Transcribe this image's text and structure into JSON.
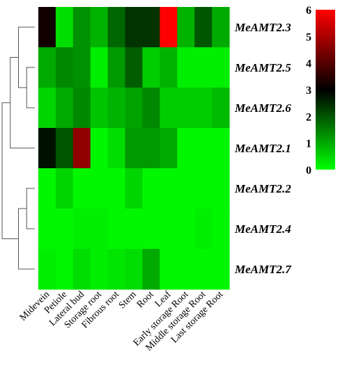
{
  "chart_data": {
    "type": "heatmap",
    "rows": [
      "MeAMT2.3",
      "MeAMT2.5",
      "MeAMT2.6",
      "MeAMT2.1",
      "MeAMT2.2",
      "MeAMT2.4",
      "MeAMT2.7"
    ],
    "columns": [
      "Midevein",
      "Petiole",
      "Lateral bud",
      "Storage root",
      "Fibrous root",
      "Stem",
      "Root",
      "Leaf",
      "Early storage Root",
      "Middle storage Root",
      "Last storage Root"
    ],
    "values": [
      [
        3.2,
        0.4,
        1.3,
        0.9,
        1.8,
        2.4,
        2.4,
        6.0,
        0.9,
        2.0,
        1.0
      ],
      [
        1.0,
        1.4,
        1.3,
        0.2,
        1.2,
        1.9,
        0.6,
        0.9,
        0.2,
        0.2,
        0.2
      ],
      [
        0.5,
        1.0,
        1.4,
        0.7,
        0.9,
        1.1,
        1.4,
        0.6,
        0.6,
        0.6,
        0.8
      ],
      [
        2.8,
        2.0,
        4.7,
        0.1,
        0.4,
        1.2,
        1.2,
        1.0,
        0.1,
        0.1,
        0.1
      ],
      [
        0.1,
        0.5,
        0.1,
        0.1,
        0.1,
        0.5,
        0.1,
        0.1,
        0.1,
        0.1,
        0.1
      ],
      [
        0.1,
        0.1,
        0.2,
        0.2,
        0.1,
        0.1,
        0.1,
        0.1,
        0.1,
        0.2,
        0.1
      ],
      [
        0.2,
        0.1,
        0.4,
        0.2,
        0.3,
        0.4,
        1.0,
        0.1,
        0.1,
        0.1,
        0.1
      ]
    ],
    "color_scale": {
      "min": 0,
      "mid": 3,
      "max": 6,
      "colors": {
        "low": "#00ff00",
        "mid": "#000000",
        "high": "#ff0000"
      },
      "ticks": [
        "0",
        "1",
        "2",
        "3",
        "4",
        "5",
        "6"
      ]
    },
    "dendrogram": {
      "order": [
        "MeAMT2.3",
        "MeAMT2.5",
        "MeAMT2.6",
        "MeAMT2.1",
        "MeAMT2.2",
        "MeAMT2.4",
        "MeAMT2.7"
      ],
      "merges": [
        {
          "left": 1,
          "right": 2,
          "height": 1
        },
        {
          "left": 0,
          "right": 7,
          "height": 2
        },
        {
          "left": 8,
          "right": 3,
          "height": 3
        },
        {
          "left": 4,
          "right": 5,
          "height": 1
        },
        {
          "left": 10,
          "right": 6,
          "height": 2
        },
        {
          "left": 9,
          "right": 11,
          "height": 4
        }
      ]
    }
  }
}
